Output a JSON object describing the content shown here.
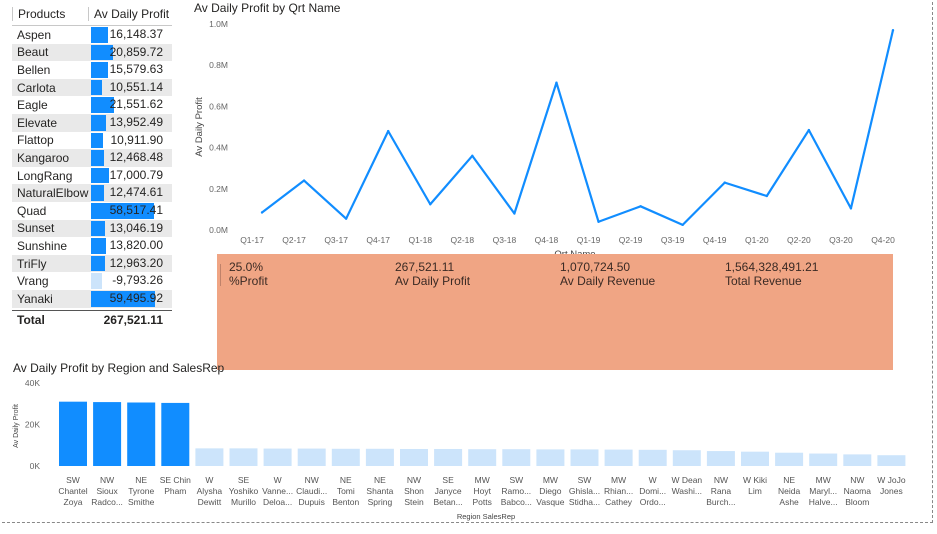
{
  "products_table": {
    "headers": [
      "Products",
      "Av Daily Profit"
    ],
    "rows": [
      {
        "name": "Aspen",
        "value": 16148.37,
        "label": "16,148.37"
      },
      {
        "name": "Beaut",
        "value": 20859.72,
        "label": "20,859.72"
      },
      {
        "name": "Bellen",
        "value": 15579.63,
        "label": "15,579.63"
      },
      {
        "name": "Carlota",
        "value": 10551.14,
        "label": "10,551.14"
      },
      {
        "name": "Eagle",
        "value": 21551.62,
        "label": "21,551.62"
      },
      {
        "name": "Elevate",
        "value": 13952.49,
        "label": "13,952.49"
      },
      {
        "name": "Flattop",
        "value": 10911.9,
        "label": "10,911.90"
      },
      {
        "name": "Kangaroo",
        "value": 12468.48,
        "label": "12,468.48"
      },
      {
        "name": "LongRang",
        "value": 17000.79,
        "label": "17,000.79"
      },
      {
        "name": "NaturalElbow",
        "value": 12474.61,
        "label": "12,474.61"
      },
      {
        "name": "Quad",
        "value": 58517.41,
        "label": "58,517.41"
      },
      {
        "name": "Sunset",
        "value": 13046.19,
        "label": "13,046.19"
      },
      {
        "name": "Sunshine",
        "value": 13820.0,
        "label": "13,820.00"
      },
      {
        "name": "TriFly",
        "value": 12963.2,
        "label": "12,963.20"
      },
      {
        "name": "Vrang",
        "value": -9793.26,
        "label": "-9,793.26"
      },
      {
        "name": "Yanaki",
        "value": 59495.92,
        "label": "59,495.92"
      }
    ],
    "total_label": "Total",
    "total_value": "267,521.11"
  },
  "kpi_card": {
    "items": [
      {
        "value": "25.0%",
        "label": "%Profit"
      },
      {
        "value": "267,521.11",
        "label": "Av Daily Profit"
      },
      {
        "value": "1,070,724.50",
        "label": "Av Daily Revenue"
      },
      {
        "value": "1,564,328,491.21",
        "label": "Total Revenue"
      }
    ]
  },
  "colors": {
    "accent": "#118dff",
    "faded": "#cce4fb",
    "kpi_bg": "#f0a584"
  },
  "chart_data": [
    {
      "type": "line",
      "title": "Av Daily Profit by Qrt Name",
      "xlabel": "Qrt Name",
      "ylabel": "Av Daily Profit",
      "categories": [
        "Q1-17",
        "Q2-17",
        "Q3-17",
        "Q4-17",
        "Q1-18",
        "Q2-18",
        "Q3-18",
        "Q4-18",
        "Q1-19",
        "Q2-19",
        "Q3-19",
        "Q4-19",
        "Q1-20",
        "Q2-20",
        "Q3-20",
        "Q4-20"
      ],
      "values": [
        85000,
        240000,
        55000,
        480000,
        125000,
        360000,
        80000,
        715000,
        40000,
        115000,
        25000,
        230000,
        165000,
        485000,
        105000,
        970000
      ],
      "yticks": [
        "0.0M",
        "0.2M",
        "0.4M",
        "0.6M",
        "0.8M",
        "1.0M"
      ],
      "ylim": [
        0,
        1000000
      ],
      "color": "#118dff"
    },
    {
      "type": "bar",
      "title": "Av Daily Profit by Region and SalesRep",
      "xlabel": "Region SalesRep",
      "ylabel": "Av Daily Profit",
      "yticks": [
        "0K",
        "20K",
        "40K"
      ],
      "ylim": [
        0,
        40000
      ],
      "categories": [
        [
          "SW",
          "Chantel",
          "Zoya"
        ],
        [
          "NW",
          "Sioux",
          "Radco..."
        ],
        [
          "NE",
          "Tyrone",
          "Smithe"
        ],
        [
          "SE Chin",
          "Pham",
          ""
        ],
        [
          "W",
          "Alysha",
          "Dewitt"
        ],
        [
          "SE",
          "Yoshiko",
          "Murillo"
        ],
        [
          "W",
          "Vanne...",
          "Deloa..."
        ],
        [
          "NW",
          "Claudi...",
          "Dupuis"
        ],
        [
          "NE",
          "Tomi",
          "Benton"
        ],
        [
          "NE",
          "Shanta",
          "Spring"
        ],
        [
          "NW",
          "Shon",
          "Stein"
        ],
        [
          "SE",
          "Janyce",
          "Betan..."
        ],
        [
          "MW",
          "Hoyt",
          "Potts"
        ],
        [
          "SW",
          "Ramo...",
          "Babco..."
        ],
        [
          "MW",
          "Diego",
          "Vasque"
        ],
        [
          "SW",
          "Ghisla...",
          "Stidha..."
        ],
        [
          "MW",
          "Rhian...",
          "Cathey"
        ],
        [
          "W",
          "Domi...",
          "Ordo..."
        ],
        [
          "W Dean",
          "Washi...",
          ""
        ],
        [
          "NW",
          "Rana",
          "Burch..."
        ],
        [
          "W Kiki",
          "Lim",
          ""
        ],
        [
          "NE",
          "Neida",
          "Ashe"
        ],
        [
          "MW",
          "Maryl...",
          "Halve..."
        ],
        [
          "NW",
          "Naoma",
          "Bloom"
        ],
        [
          "W JoJo",
          "Jones",
          ""
        ]
      ],
      "values": [
        31000,
        30800,
        30600,
        30400,
        8500,
        8500,
        8400,
        8400,
        8300,
        8300,
        8200,
        8200,
        8100,
        8100,
        8000,
        8000,
        7900,
        7800,
        7600,
        7200,
        6900,
        6400,
        6000,
        5600,
        5200
      ],
      "highlighted": [
        true,
        true,
        true,
        true,
        false,
        false,
        false,
        false,
        false,
        false,
        false,
        false,
        false,
        false,
        false,
        false,
        false,
        false,
        false,
        false,
        false,
        false,
        false,
        false,
        false
      ]
    }
  ]
}
